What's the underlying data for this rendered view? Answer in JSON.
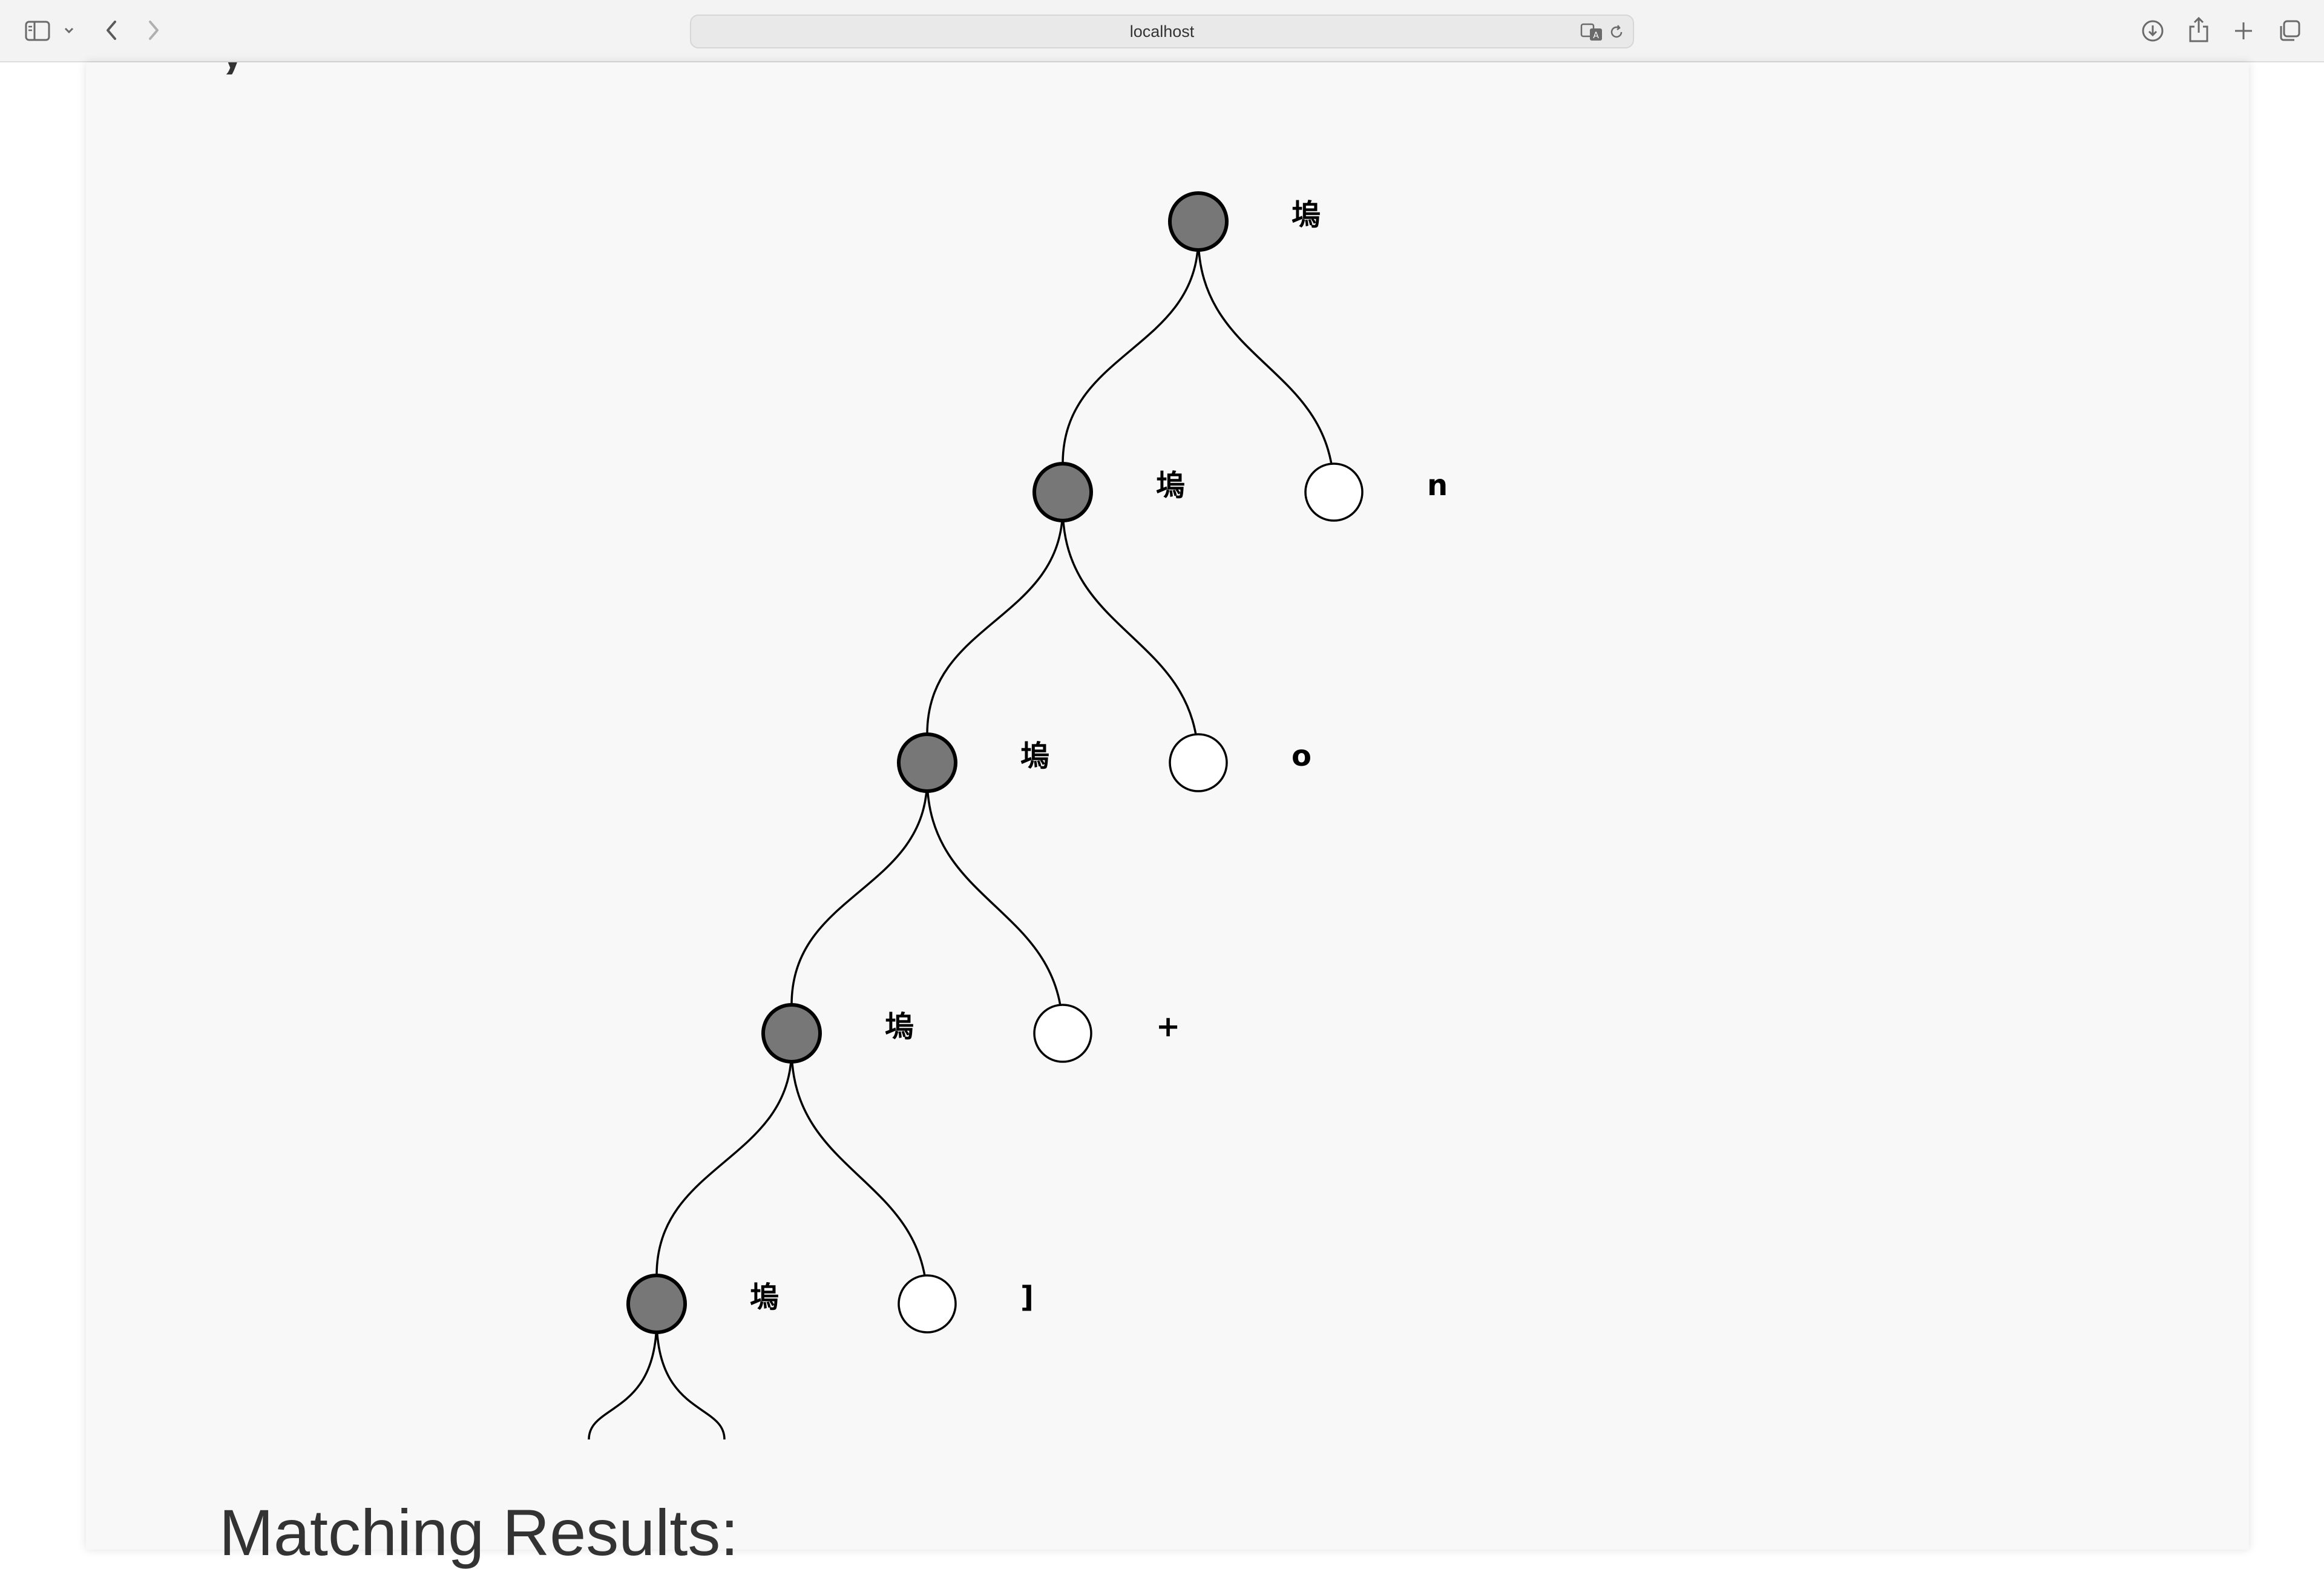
{
  "browser": {
    "url": "localhost"
  },
  "page": {
    "title_fragment": "y",
    "section_heading": "Matching Results:"
  },
  "tree": {
    "nodes": [
      {
        "id": "n0",
        "label": "塢",
        "filled": true
      },
      {
        "id": "n1",
        "label": "塢",
        "filled": true
      },
      {
        "id": "n2",
        "label": "n",
        "filled": false
      },
      {
        "id": "n3",
        "label": "塢",
        "filled": true
      },
      {
        "id": "n4",
        "label": "o",
        "filled": false
      },
      {
        "id": "n5",
        "label": "塢",
        "filled": true
      },
      {
        "id": "n6",
        "label": "+",
        "filled": false
      },
      {
        "id": "n7",
        "label": "塢",
        "filled": true
      },
      {
        "id": "n8",
        "label": "]",
        "filled": false
      }
    ],
    "edges": [
      [
        "n0",
        "n1"
      ],
      [
        "n0",
        "n2"
      ],
      [
        "n1",
        "n3"
      ],
      [
        "n1",
        "n4"
      ],
      [
        "n3",
        "n5"
      ],
      [
        "n3",
        "n6"
      ],
      [
        "n5",
        "n7"
      ],
      [
        "n5",
        "n8"
      ]
    ],
    "colors": {
      "filled_node": "#777777",
      "stroke": "#000000",
      "empty_node": "#ffffff"
    }
  }
}
